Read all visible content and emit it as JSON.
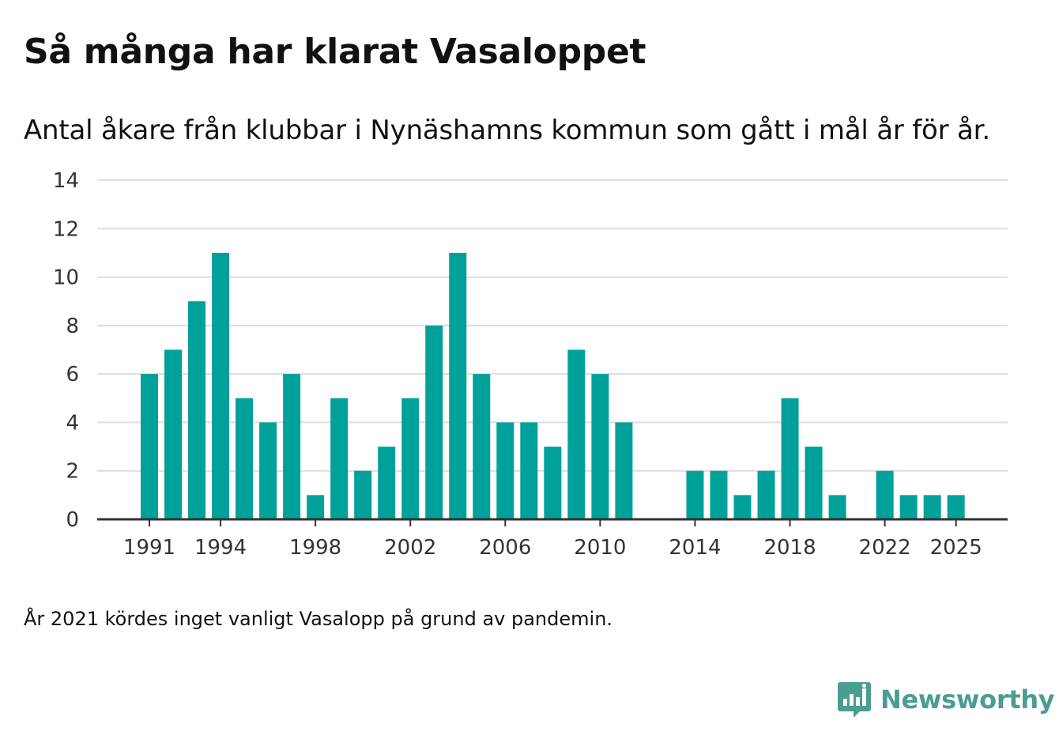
{
  "title": "Så många har klarat Vasaloppet",
  "subtitle": "Antal åkare från klubbar i Nynäshamns kommun som gått i mål år för år.",
  "footnote": "År 2021 kördes inget vanligt Vasalopp på grund av pandemin.",
  "brand": {
    "name": "Newsworthy",
    "icon": "bar-chart-speech-bubble-icon",
    "color": "#4a9d92"
  },
  "colors": {
    "bar": "#00a19a",
    "grid": "#dddddd",
    "axis": "#333333"
  },
  "chart_data": {
    "type": "bar",
    "title": "Så många har klarat Vasaloppet",
    "subtitle": "Antal åkare från klubbar i Nynäshamns kommun som gått i mål år för år.",
    "xlabel": "",
    "ylabel": "",
    "ylim": [
      0,
      14
    ],
    "yticks": [
      0,
      2,
      4,
      6,
      8,
      10,
      12,
      14
    ],
    "xticks": [
      "1991",
      "1994",
      "1998",
      "2002",
      "2006",
      "2010",
      "2014",
      "2018",
      "2022",
      "2025"
    ],
    "grid": true,
    "legend": "none",
    "categories": [
      "1991",
      "1992",
      "1993",
      "1994",
      "1995",
      "1996",
      "1997",
      "1998",
      "1999",
      "2000",
      "2001",
      "2002",
      "2003",
      "2004",
      "2005",
      "2006",
      "2007",
      "2008",
      "2009",
      "2010",
      "2011",
      "2012",
      "2013",
      "2014",
      "2015",
      "2016",
      "2017",
      "2018",
      "2019",
      "2020",
      "2021",
      "2022",
      "2023",
      "2024",
      "2025"
    ],
    "values": [
      6,
      7,
      9,
      11,
      5,
      4,
      6,
      1,
      5,
      2,
      3,
      5,
      8,
      11,
      6,
      4,
      4,
      3,
      7,
      6,
      4,
      0,
      0,
      2,
      2,
      1,
      2,
      5,
      3,
      1,
      0,
      2,
      1,
      1,
      1
    ]
  }
}
